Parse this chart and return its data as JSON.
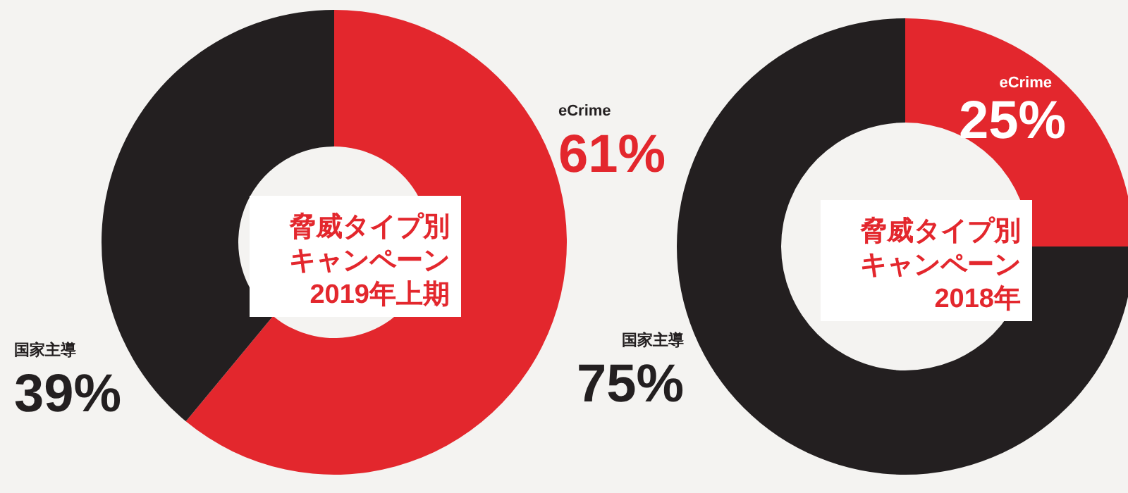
{
  "chart_data": [
    {
      "type": "donut",
      "title": "脅威タイプ別キャンペーン2019年上期",
      "categories": [
        "eCrime",
        "国家主導"
      ],
      "values": [
        61,
        39
      ],
      "colors": [
        "#e3272d",
        "#231f20"
      ],
      "value_labels": [
        "61%",
        "39%"
      ],
      "legend": false
    },
    {
      "type": "donut",
      "title": "脅威タイプ別キャンペーン2018年",
      "categories": [
        "eCrime",
        "国家主導"
      ],
      "values": [
        25,
        75
      ],
      "colors": [
        "#e3272d",
        "#231f20"
      ],
      "value_labels": [
        "25%",
        "75%"
      ],
      "legend": false
    }
  ]
}
